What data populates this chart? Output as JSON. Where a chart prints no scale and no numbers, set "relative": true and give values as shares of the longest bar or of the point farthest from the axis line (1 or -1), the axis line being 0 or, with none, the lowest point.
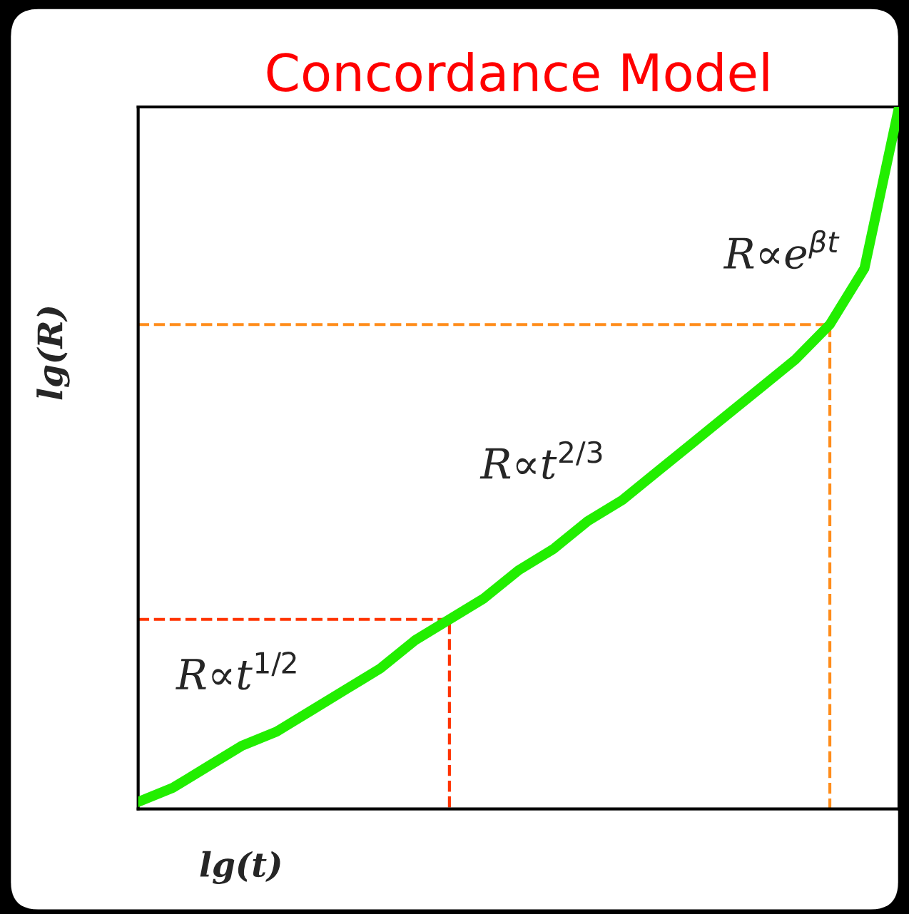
{
  "chart_data": {
    "type": "line",
    "title": "Concordance Model",
    "xlabel": "lg(t)",
    "ylabel": "lg(R)",
    "relative": true,
    "categories": [
      null,
      null,
      null,
      null,
      null,
      null,
      null,
      null,
      null,
      null,
      null,
      null,
      null,
      null,
      null,
      null,
      null,
      null,
      null,
      null,
      null,
      null,
      null
    ],
    "series": [
      {
        "color": "#22ee00",
        "values": [
          0.01,
          0.03,
          0.06,
          0.09,
          0.11,
          0.14,
          0.17,
          0.2,
          0.24,
          0.27,
          0.3,
          0.34,
          0.37,
          0.41,
          0.44,
          0.48,
          0.52,
          0.56,
          0.6,
          0.64,
          0.69,
          0.77,
          1.0
        ]
      }
    ],
    "ref_lines": [
      {
        "axis": "y",
        "value": 0.27,
        "color": "#ff3300",
        "line_style": "dashed"
      },
      {
        "axis": "y",
        "value": 0.69,
        "color": "#ff8c1a",
        "line_style": "dashed"
      }
    ],
    "annotations": [
      "R∝t$^{1/2}$",
      "R∝t$^{2/3}$",
      "R∝e$^{βt}$"
    ],
    "legend": false,
    "marker": "none",
    "line_style": "solid"
  }
}
